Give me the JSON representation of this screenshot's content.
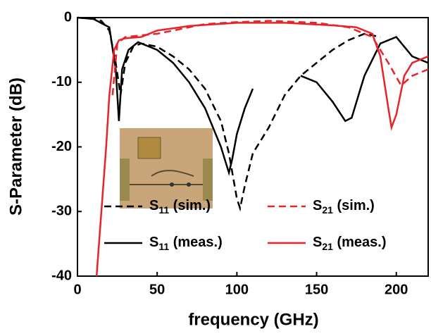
{
  "chart_data": {
    "type": "line",
    "xlabel": "frequency (GHz)",
    "ylabel": "S-Parameter (dB)",
    "xlim": [
      0,
      220
    ],
    "xticks": [
      0,
      50,
      100,
      150,
      200
    ],
    "ylim": [
      -40,
      0
    ],
    "yticks": [
      0,
      -10,
      -20,
      -30,
      -40
    ],
    "legend": "lower right",
    "series": [
      {
        "name": "S11 (sim.)",
        "color": "#000000",
        "dash": true,
        "x": [
          0,
          10,
          15,
          20,
          24,
          27,
          30,
          35,
          40,
          50,
          60,
          70,
          80,
          90,
          95,
          100,
          102,
          105,
          110,
          120,
          130,
          140,
          150,
          160,
          170,
          180,
          190
        ],
        "values": [
          0,
          -0.2,
          -0.5,
          -2,
          -7,
          -12,
          -7,
          -4.5,
          -4,
          -4.5,
          -6,
          -8,
          -11,
          -16,
          -21,
          -28,
          -29.5,
          -26,
          -21,
          -17,
          -12,
          -9,
          -7,
          -5,
          -3.5,
          -2.5,
          -3
        ]
      },
      {
        "name": "S11 (meas.)",
        "color": "#000000",
        "dash": false,
        "x": [
          0,
          10,
          20,
          24,
          26,
          28,
          32,
          38,
          50,
          60,
          70,
          80,
          90,
          95,
          97,
          100,
          105,
          110,
          125,
          140,
          150,
          160,
          168,
          172,
          180,
          190,
          200,
          210,
          220
        ],
        "values": [
          0,
          -0.2,
          -1.5,
          -8,
          -16,
          -8,
          -5,
          -3.8,
          -5,
          -7,
          -10,
          -14,
          -20,
          -24,
          -22,
          -18,
          -14,
          -11,
          null,
          -9,
          -10,
          -13,
          -16,
          -15.5,
          -9,
          -4,
          -3,
          -6,
          -7
        ]
      },
      {
        "name": "S21 (sim.)",
        "color": "#e8232a",
        "dash": true,
        "x": [
          22,
          25,
          30,
          50,
          80,
          100,
          120,
          150,
          170,
          185,
          195,
          203,
          210,
          220
        ],
        "values": [
          -12,
          -4,
          -3,
          -2.5,
          -1,
          -0.7,
          -0.5,
          -0.8,
          -1.5,
          -3,
          -7,
          -10.5,
          -9,
          -8
        ]
      },
      {
        "name": "S21 (meas.)",
        "color": "#e8232a",
        "dash": false,
        "x": [
          12,
          15,
          18,
          20,
          23,
          26,
          30,
          40,
          50,
          70,
          100,
          130,
          160,
          175,
          185,
          190,
          195,
          197,
          200,
          205,
          210,
          220
        ],
        "values": [
          -40,
          -30,
          -20,
          -12,
          -5,
          -3.5,
          -3.2,
          -3,
          -2,
          -1.3,
          -0.8,
          -0.8,
          -1.2,
          -1.5,
          -2.5,
          -6,
          -14,
          -17,
          -15,
          -9,
          -7,
          -6
        ]
      }
    ]
  }
}
